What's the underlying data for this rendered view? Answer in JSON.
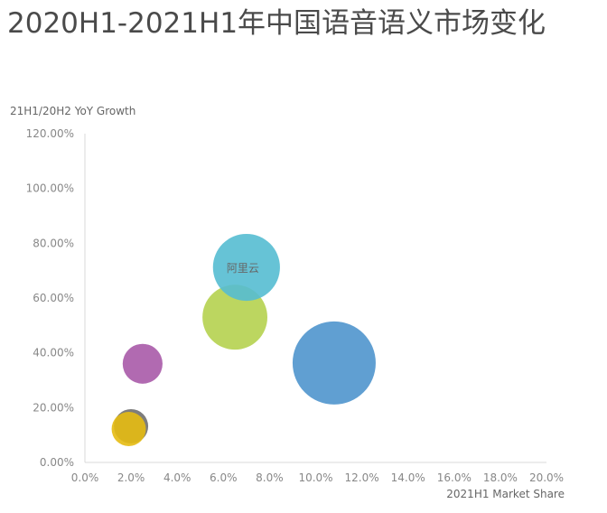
{
  "chart_data": {
    "type": "scatter",
    "subtype": "bubble",
    "title": "2020H1-2021H1年中国语音语义市场变化",
    "xlabel": "2021H1 Market Share",
    "ylabel": "21H1/20H2 YoY Growth",
    "xlim": [
      0,
      20
    ],
    "ylim": [
      0,
      120
    ],
    "x_ticks": [
      "0.0%",
      "2.0%",
      "4.0%",
      "6.0%",
      "8.0%",
      "10.0%",
      "12.0%",
      "14.0%",
      "16.0%",
      "18.0%",
      "20.0%"
    ],
    "y_ticks": [
      "0.00%",
      "20.00%",
      "40.00%",
      "60.00%",
      "80.00%",
      "100.00%",
      "120.00%"
    ],
    "grid": false,
    "points": [
      {
        "x": 10.8,
        "y": 36.3,
        "size": 100,
        "color": "#4f95cd",
        "label": ""
      },
      {
        "x": 6.5,
        "y": 53.0,
        "size": 61,
        "color": "#b5d24f",
        "label": ""
      },
      {
        "x": 7.0,
        "y": 71.2,
        "size": 65,
        "color": "#55bcd2",
        "label": "阿里云"
      },
      {
        "x": 2.5,
        "y": 36.0,
        "size": 23,
        "color": "#a95aa8",
        "label": ""
      },
      {
        "x": 2.0,
        "y": 13.2,
        "size": 17,
        "color": "#6f6f6f",
        "label": ""
      },
      {
        "x": 1.9,
        "y": 12.2,
        "size": 17,
        "color": "#e6bb12",
        "label": ""
      }
    ]
  }
}
